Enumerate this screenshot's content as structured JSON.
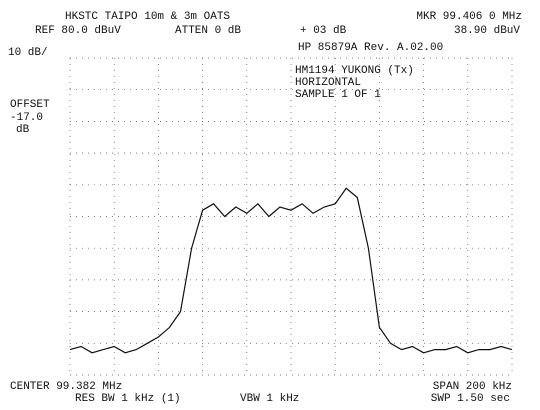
{
  "chart_data": {
    "type": "line",
    "title": "HKSTC TAIPO 10m & 3m OATS",
    "ref": "REF  80.0 dBuV",
    "atten": "ATTEN 0 dB",
    "correction": "+ 03 dB",
    "marker": "MKR 99.406 0 MHz",
    "marker_level": "38.90 dBuV",
    "scale": "10 dB/",
    "instrument": "HP 85879A Rev. A.02.00",
    "labels": [
      "HM1194 YUKONG (Tx)",
      "HORIZONTAL",
      "SAMPLE 1 OF 1"
    ],
    "offset": [
      "OFFSET",
      "-17.0",
      "dB"
    ],
    "center": "CENTER 99.382 MHz",
    "span": "SPAN 200 kHz",
    "rbw": "RES BW 1 kHz (1)",
    "vbw": "VBW 1 kHz",
    "sweep": "SWP 1.50  sec",
    "color": "#111111",
    "x": [
      99.282,
      99.287,
      99.292,
      99.297,
      99.302,
      99.307,
      99.312,
      99.317,
      99.322,
      99.327,
      99.332,
      99.337,
      99.342,
      99.347,
      99.352,
      99.357,
      99.362,
      99.367,
      99.372,
      99.377,
      99.382,
      99.387,
      99.392,
      99.397,
      99.402,
      99.407,
      99.412,
      99.417,
      99.422,
      99.427,
      99.432,
      99.437,
      99.442,
      99.447,
      99.452,
      99.457,
      99.462,
      99.467,
      99.472,
      99.477,
      99.482
    ],
    "values": [
      -12,
      -11,
      -13,
      -12,
      -11,
      -13,
      -12,
      -10,
      -8,
      -5,
      0,
      20,
      32,
      34,
      30,
      33,
      31,
      34,
      30,
      33,
      32,
      34,
      31,
      33,
      34,
      38.9,
      36,
      20,
      -5,
      -10,
      -12,
      -11,
      -13,
      -12,
      -12,
      -11,
      -13,
      -12,
      -12,
      -11,
      -12
    ],
    "xlim": [
      99.282,
      99.482
    ],
    "ylim": [
      -20,
      80
    ],
    "xticks": [
      99.282,
      99.302,
      99.322,
      99.342,
      99.362,
      99.382,
      99.402,
      99.422,
      99.442,
      99.462,
      99.482
    ],
    "yticks": [
      -20,
      -10,
      0,
      10,
      20,
      30,
      40,
      50,
      60,
      70,
      80
    ],
    "grid": true
  }
}
